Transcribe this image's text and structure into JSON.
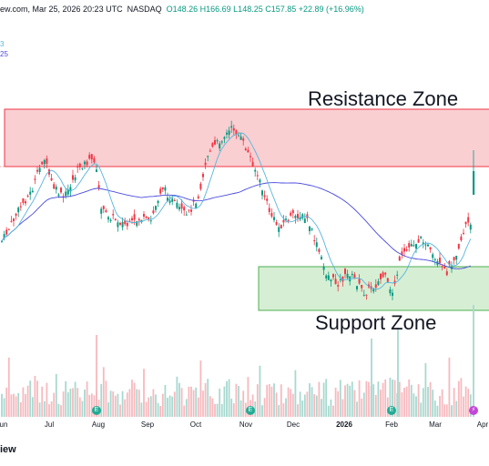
{
  "header": {
    "source_fragment": "ew.com, Mar 25, 2026 20:23 UTC",
    "exchange": "NASDAQ",
    "ohlc": "O148.26 H166.69 L148.25 C157.85 +22.89 (+16.96%)",
    "ma1_fragment": "3",
    "ma2_fragment": "25"
  },
  "watermark": "iew",
  "colors": {
    "up": "#089981",
    "down": "#f23645",
    "ma_fast": "#5ab4dd",
    "ma_slow": "#4a4adf",
    "resistance_fill": "#f9cfd2",
    "resistance_stroke": "#f23645",
    "support_fill": "#d6efd4",
    "support_stroke": "#4caf50"
  },
  "chart_data": {
    "type": "candlestick",
    "title": "",
    "x_axis_labels": [
      "un",
      "Jul",
      "Aug",
      "Sep",
      "Oct",
      "Nov",
      "Dec",
      "2026",
      "Feb",
      "Mar",
      "Apr"
    ],
    "x_axis_bold": [
      "2026"
    ],
    "annotations": [
      {
        "label": "Resistance Zone",
        "kind": "rectangle"
      },
      {
        "label": "Support Zone",
        "kind": "rectangle"
      }
    ],
    "event_markers": [
      {
        "label": "E",
        "month": "Aug"
      },
      {
        "label": "E",
        "month": "Nov"
      },
      {
        "label": "E",
        "month": "Feb"
      }
    ],
    "split_marker": {
      "label": "⚡"
    },
    "last_bar": {
      "open": 148.26,
      "high": 166.69,
      "low": 148.25,
      "close": 157.85,
      "change": 22.89,
      "change_pct": 16.96
    },
    "grid": false,
    "volume_pane": true
  }
}
